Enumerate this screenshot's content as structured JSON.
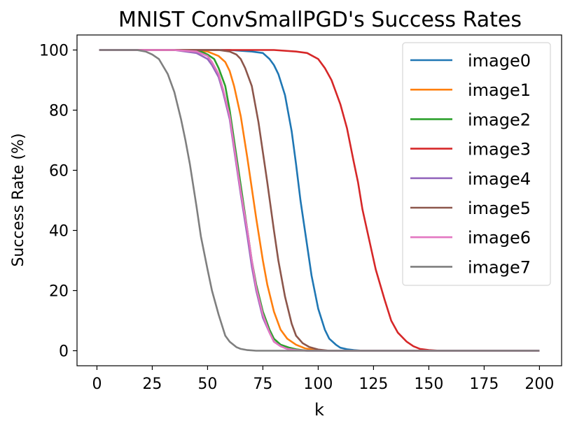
{
  "chart_data": {
    "type": "line",
    "title": "MNIST ConvSmallPGD's Success Rates",
    "xlabel": "k",
    "ylabel": "Success Rate (%)",
    "xlim": [
      -9,
      210
    ],
    "ylim": [
      -5,
      105
    ],
    "xticks": [
      0,
      25,
      50,
      75,
      100,
      125,
      150,
      175,
      200
    ],
    "yticks": [
      0,
      20,
      40,
      60,
      80,
      100
    ],
    "grid": false,
    "legend_position": "upper-right",
    "series": [
      {
        "name": "image0",
        "color": "#1f77b4",
        "x": [
          1,
          60,
          70,
          75,
          78,
          80,
          82,
          85,
          88,
          90,
          92,
          95,
          97,
          100,
          103,
          105,
          108,
          110,
          113,
          116,
          120,
          200
        ],
        "y": [
          100,
          100,
          99.5,
          99,
          97,
          95,
          92,
          85,
          73,
          62,
          50,
          35,
          25,
          14,
          7,
          4,
          2,
          1,
          0.5,
          0.2,
          0,
          0
        ]
      },
      {
        "name": "image1",
        "color": "#ff7f0e",
        "x": [
          1,
          42,
          50,
          55,
          58,
          60,
          62,
          65,
          68,
          70,
          72,
          75,
          77,
          80,
          83,
          86,
          90,
          94,
          98,
          103,
          200
        ],
        "y": [
          100,
          100,
          99.5,
          98,
          96,
          93,
          88,
          78,
          64,
          54,
          44,
          30,
          22,
          13,
          7,
          4,
          2,
          0.8,
          0.3,
          0,
          0
        ]
      },
      {
        "name": "image2",
        "color": "#2ca02c",
        "x": [
          1,
          40,
          47,
          50,
          53,
          55,
          58,
          60,
          62,
          65,
          68,
          70,
          72,
          75,
          78,
          80,
          83,
          87,
          90,
          95,
          200
        ],
        "y": [
          100,
          100,
          99.5,
          98.5,
          97,
          94,
          88,
          80,
          70,
          55,
          40,
          30,
          22,
          13,
          7,
          4,
          2,
          1,
          0.5,
          0,
          0
        ]
      },
      {
        "name": "image3",
        "color": "#d62728",
        "x": [
          1,
          80,
          90,
          95,
          100,
          103,
          106,
          110,
          113,
          116,
          118,
          120,
          123,
          126,
          130,
          133,
          136,
          140,
          143,
          146,
          150,
          155,
          200
        ],
        "y": [
          100,
          100,
          99.5,
          99,
          97,
          94,
          90,
          82,
          74,
          63,
          56,
          47,
          37,
          27,
          17,
          10,
          6,
          3,
          1.5,
          0.6,
          0.2,
          0,
          0
        ]
      },
      {
        "name": "image4",
        "color": "#9467bd",
        "x": [
          1,
          35,
          45,
          50,
          52,
          55,
          57,
          60,
          62,
          65,
          68,
          70,
          72,
          75,
          78,
          80,
          83,
          86,
          90,
          95,
          200
        ],
        "y": [
          100,
          100,
          99,
          97,
          95,
          91,
          86,
          77,
          67,
          52,
          38,
          28,
          20,
          11,
          6,
          3,
          1.5,
          0.6,
          0.2,
          0,
          0
        ]
      },
      {
        "name": "image5",
        "color": "#8c564b",
        "x": [
          1,
          55,
          60,
          63,
          65,
          67,
          70,
          73,
          75,
          77,
          80,
          82,
          85,
          88,
          90,
          93,
          96,
          100,
          105,
          200
        ],
        "y": [
          100,
          100,
          99.5,
          98.5,
          97,
          94,
          88,
          76,
          66,
          56,
          40,
          30,
          18,
          9,
          5,
          2.5,
          1.2,
          0.4,
          0,
          0
        ]
      },
      {
        "name": "image6",
        "color": "#e377c2",
        "x": [
          1,
          35,
          45,
          50,
          52,
          55,
          57,
          60,
          62,
          65,
          68,
          70,
          72,
          75,
          78,
          80,
          83,
          86,
          90,
          95,
          200
        ],
        "y": [
          100,
          100,
          99.5,
          98,
          96,
          92,
          87,
          78,
          68,
          53,
          40,
          30,
          21,
          12,
          6,
          3,
          1.5,
          0.6,
          0.2,
          0,
          0
        ]
      },
      {
        "name": "image7",
        "color": "#7f7f7f",
        "x": [
          1,
          18,
          22,
          25,
          28,
          32,
          35,
          38,
          40,
          42,
          45,
          47,
          50,
          52,
          55,
          58,
          60,
          63,
          65,
          68,
          72,
          76,
          200
        ],
        "y": [
          100,
          100,
          99.5,
          98.5,
          97,
          92,
          86,
          77,
          70,
          62,
          48,
          38,
          27,
          20,
          12,
          5,
          3,
          1.2,
          0.6,
          0.2,
          0,
          0,
          0
        ]
      }
    ]
  }
}
